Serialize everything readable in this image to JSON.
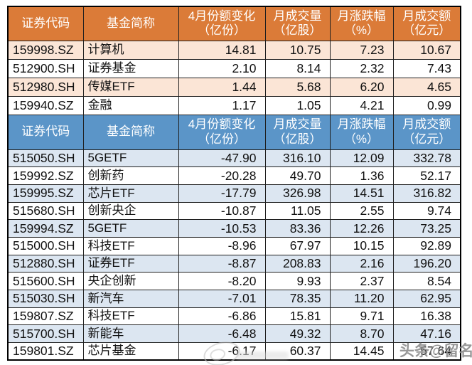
{
  "colors": {
    "orange_header": "#DB7B38",
    "orange_stripe": "#FBE5D6",
    "blue_header": "#5B95C8",
    "blue_stripe": "#DCE6F1",
    "header_text": "#ffffff",
    "body_text": "#111111",
    "grid_border": "#1f1f1f",
    "watermark_gray": "#8a8a8a"
  },
  "headers": [
    {
      "line1": "证券代码",
      "line2": ""
    },
    {
      "line1": "基金简称",
      "line2": ""
    },
    {
      "line1": "4月份额变化",
      "line2": "（亿份）"
    },
    {
      "line1": "月成交量",
      "line2": "（亿股）"
    },
    {
      "line1": "月涨跌幅",
      "line2": "（%）"
    },
    {
      "line1": "月成交额",
      "line2": "（亿元）"
    }
  ],
  "chart_data": [
    {
      "type": "table",
      "title": "",
      "theme": "orange",
      "columns": [
        "证券代码",
        "基金简称",
        "4月份额变化（亿份）",
        "月成交量（亿股）",
        "月涨跌幅（%）",
        "月成交额（亿元）"
      ],
      "rows": [
        [
          "159998.SZ",
          "计算机",
          "14.81",
          "10.75",
          "7.23",
          "10.67"
        ],
        [
          "512900.SH",
          "证券基金",
          "2.10",
          "8.14",
          "2.32",
          "7.43"
        ],
        [
          "512980.SH",
          "传媒ETF",
          "1.44",
          "5.68",
          "6.20",
          "4.65"
        ],
        [
          "159940.SZ",
          "金融",
          "1.17",
          "1.05",
          "4.21",
          "0.99"
        ]
      ]
    },
    {
      "type": "table",
      "title": "",
      "theme": "blue",
      "columns": [
        "证券代码",
        "基金简称",
        "4月份额变化（亿份）",
        "月成交量（亿股）",
        "月涨跌幅（%）",
        "月成交额（亿元）"
      ],
      "rows": [
        [
          "515050.SH",
          "5GETF",
          "-47.90",
          "316.10",
          "12.09",
          "332.78"
        ],
        [
          "159992.SZ",
          "创新药",
          "-20.28",
          "49.70",
          "1.36",
          "52.17"
        ],
        [
          "159995.SZ",
          "芯片ETF",
          "-17.79",
          "326.98",
          "14.51",
          "316.82"
        ],
        [
          "515680.SH",
          "创新央企",
          "-10.87",
          "11.05",
          "2.55",
          "9.74"
        ],
        [
          "159994.SZ",
          "5GETF",
          "-10.53",
          "83.36",
          "12.26",
          "73.25"
        ],
        [
          "515000.SH",
          "科技ETF",
          "-8.96",
          "67.97",
          "10.15",
          "92.89"
        ],
        [
          "512880.SH",
          "证券ETF",
          "-8.87",
          "208.83",
          "2.16",
          "196.20"
        ],
        [
          "515600.SH",
          "央企创新",
          "-8.20",
          "9.93",
          "2.37",
          "8.54"
        ],
        [
          "515030.SH",
          "新汽车",
          "-7.01",
          "78.35",
          "11.20",
          "62.95"
        ],
        [
          "159807.SZ",
          "科技ETF",
          "-6.86",
          "15.81",
          "9.71",
          "16.38"
        ],
        [
          "515700.SH",
          "新能车",
          "-6.48",
          "49.32",
          "8.70",
          "47.16"
        ],
        [
          "159801.SZ",
          "芯片基金",
          "-6.17",
          "60.37",
          "14.45",
          "57.64"
        ]
      ]
    }
  ],
  "watermark": {
    "toutiao_text": "头条@留名"
  }
}
